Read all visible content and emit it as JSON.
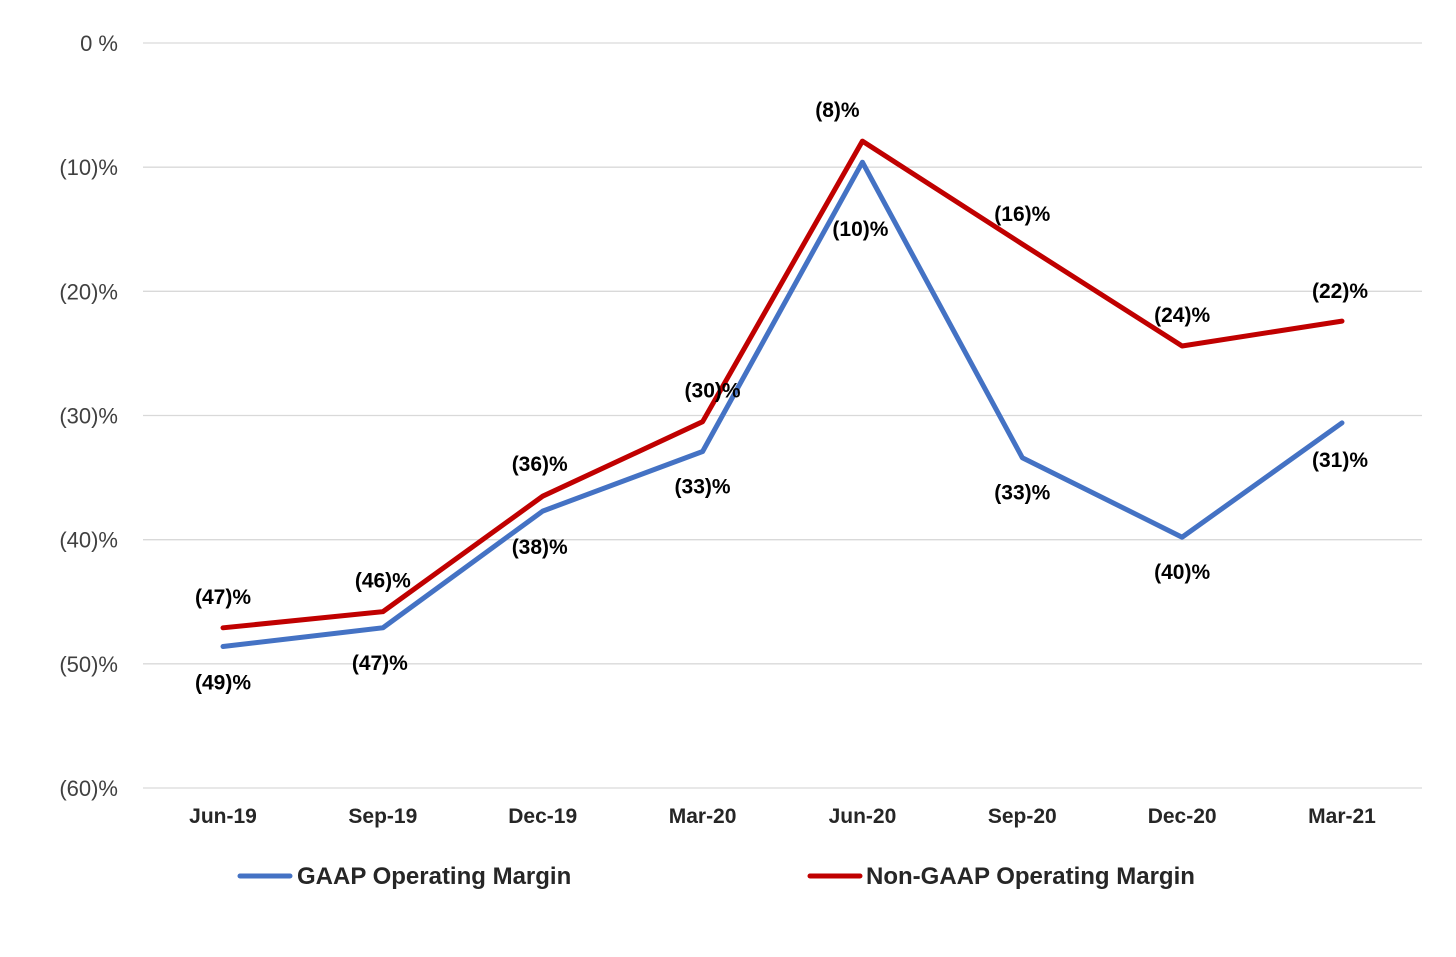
{
  "chart_data": {
    "type": "line",
    "categories": [
      "Jun-19",
      "Sep-19",
      "Dec-19",
      "Mar-20",
      "Jun-20",
      "Sep-20",
      "Dec-20",
      "Mar-21"
    ],
    "ylim": [
      -60,
      0
    ],
    "yticks": [
      0,
      -10,
      -20,
      -30,
      -40,
      -50,
      -60
    ],
    "ytick_labels": [
      "0 %",
      "(10)%",
      "(20)%",
      "(30)%",
      "(40)%",
      "(50)%",
      "(60)%"
    ],
    "grid": true,
    "legend_position": "bottom",
    "series": [
      {
        "name": "GAAP Operating Margin",
        "color": "#4472c4",
        "values": [
          -48.6,
          -47.1,
          -37.7,
          -32.9,
          -9.6,
          -33.4,
          -39.8,
          -30.6
        ],
        "labels": [
          "(49)%",
          "(47)%",
          "(38)%",
          "(33)%",
          "(10)%",
          "(33)%",
          "(40)%",
          "(31)%"
        ]
      },
      {
        "name": "Non-GAAP Operating Margin",
        "color": "#c00000",
        "values": [
          -47.1,
          -45.8,
          -36.5,
          -30.5,
          -7.9,
          -16.2,
          -24.4,
          -22.4
        ],
        "labels": [
          "(47)%",
          "(46)%",
          "(36)%",
          "(30)%",
          "(8)%",
          "(16)%",
          "(24)%",
          "(22)%"
        ]
      }
    ]
  }
}
